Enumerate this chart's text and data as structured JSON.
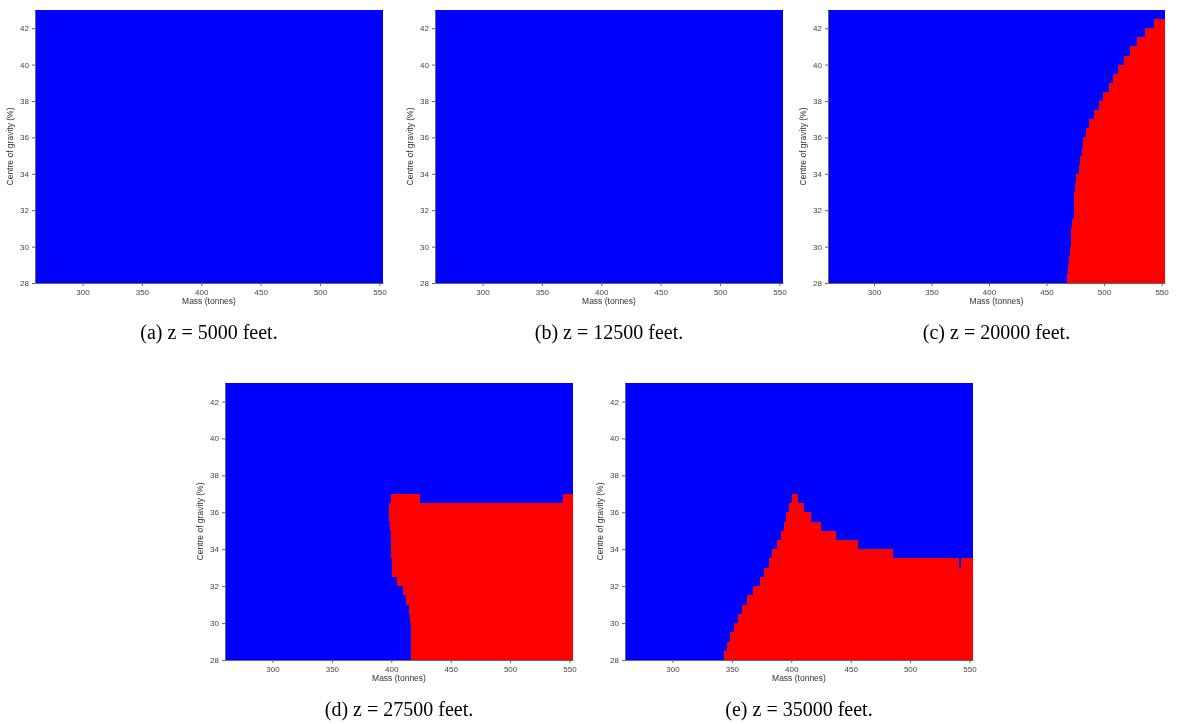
{
  "chart_data": [
    {
      "type": "area",
      "title": "(a) z = 5000 feet.",
      "xlabel": "Mass (tonnes)",
      "ylabel": "Centre of gravity (%)",
      "xlim": [
        260,
        553
      ],
      "ylim": [
        28,
        43
      ],
      "xticks": [
        300,
        350,
        400,
        450,
        500,
        550
      ],
      "yticks": [
        28,
        30,
        32,
        34,
        36,
        38,
        40,
        42
      ],
      "grid": false
    },
    {
      "type": "area",
      "title": "(b) z = 12500 feet.",
      "xlabel": "Mass (tonnes)",
      "ylabel": "Centre of gravity (%)",
      "xlim": [
        260,
        553
      ],
      "ylim": [
        28,
        43
      ],
      "xticks": [
        300,
        350,
        400,
        450,
        500,
        550
      ],
      "yticks": [
        28,
        30,
        32,
        34,
        36,
        38,
        40,
        42
      ],
      "grid": false
    },
    {
      "type": "area",
      "title": "(c) z = 20000 feet.",
      "xlabel": "Mass (tonnes)",
      "ylabel": "Centre of gravity (%)",
      "xlim": [
        260,
        553
      ],
      "ylim": [
        28,
        43
      ],
      "xticks": [
        300,
        350,
        400,
        450,
        500,
        550
      ],
      "yticks": [
        28,
        30,
        32,
        34,
        36,
        38,
        40,
        42
      ],
      "grid": false,
      "x": [
        467.5,
        468.5,
        469.5,
        470.5,
        471,
        472.5,
        473.5,
        474,
        474.5,
        475.5,
        478.5,
        479.5,
        480.5,
        482,
        484,
        487,
        491.5,
        495.5,
        499.5,
        504,
        508,
        512.5,
        517.5,
        523,
        529,
        536,
        543.5,
        553
      ],
      "series": [
        {
          "color": "#ff0000",
          "values": [
            28.5,
            29,
            29.5,
            30,
            31,
            31.5,
            32.5,
            33,
            33.5,
            34,
            34.5,
            35,
            35.5,
            36,
            36.5,
            37,
            37.5,
            38,
            38.5,
            39,
            39.5,
            40,
            40.5,
            41,
            41.5,
            42,
            42.5,
            42.5
          ]
        }
      ]
    },
    {
      "type": "area",
      "title": "(d) z = 27500 feet.",
      "xlabel": "Mass (tonnes)",
      "ylabel": "Centre of gravity (%)",
      "xlim": [
        260,
        553
      ],
      "ylim": [
        28,
        43
      ],
      "xticks": [
        300,
        350,
        400,
        450,
        500,
        550
      ],
      "yticks": [
        28,
        30,
        32,
        34,
        36,
        38,
        40,
        42
      ],
      "grid": false,
      "x": [
        398.5,
        399,
        400,
        401,
        405,
        410,
        412.5,
        415,
        415.5,
        416.5,
        424.5,
        545,
        553
      ],
      "series": [
        {
          "color": "#ff0000",
          "values": [
            36.5,
            36.5,
            37,
            37,
            37,
            37,
            37,
            37,
            37,
            37,
            36.5,
            37,
            37
          ]
        },
        {
          "color": "#0000ff",
          "values": [
            35.5,
            35,
            33.5,
            32.5,
            32,
            31.5,
            31,
            30.5,
            30,
            null,
            null,
            null,
            null
          ]
        }
      ]
    },
    {
      "type": "area",
      "title": "(e) z = 35000 feet.",
      "xlabel": "Mass (tonnes)",
      "ylabel": "Centre of gravity (%)",
      "xlim": [
        260,
        553
      ],
      "ylim": [
        28,
        43
      ],
      "xticks": [
        300,
        350,
        400,
        450,
        500,
        550
      ],
      "yticks": [
        28,
        30,
        32,
        34,
        36,
        38,
        40,
        42
      ],
      "grid": false,
      "x": [
        343,
        345.5,
        348.5,
        351.5,
        355.5,
        358.5,
        363,
        368,
        373.5,
        377,
        381.5,
        384,
        388,
        391.5,
        393.5,
        395.5,
        398.5,
        400.5,
        406,
        411,
        416.5,
        425,
        437.5,
        456,
        486,
        541,
        542.5,
        553
      ],
      "series": [
        {
          "color": "#ff0000",
          "values": [
            28.5,
            29,
            29.5,
            30,
            30.5,
            31,
            31.5,
            32,
            32.5,
            33,
            33.5,
            34,
            34.5,
            35,
            35.5,
            36,
            36.5,
            37,
            36.5,
            36,
            35.5,
            35,
            34.5,
            34,
            33.5,
            33,
            33.5,
            33.5
          ]
        }
      ]
    }
  ]
}
